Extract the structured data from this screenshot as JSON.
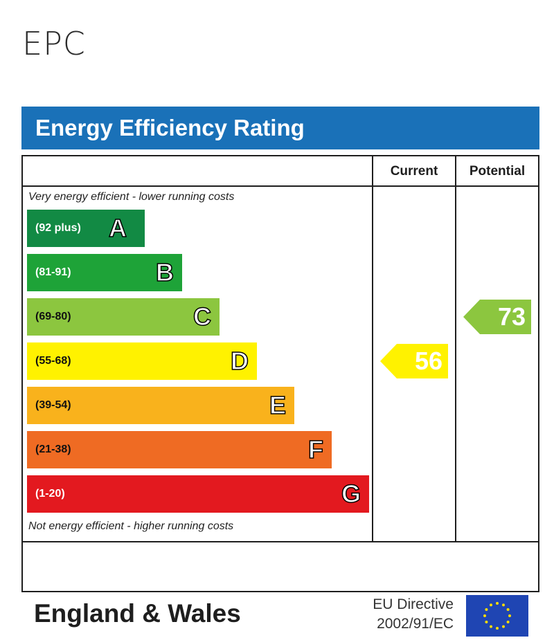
{
  "page": {
    "heading": "EPC"
  },
  "epc": {
    "title": "Energy Efficiency Rating",
    "column_headers": {
      "current": "Current",
      "potential": "Potential"
    },
    "top_caption": "Very energy efficient - lower running costs",
    "bottom_caption": "Not energy efficient - higher running costs",
    "footer": {
      "region": "England & Wales",
      "directive_line1": "EU Directive",
      "directive_line2": "2002/91/EC"
    }
  },
  "chart_data": {
    "type": "bar",
    "categories": [
      "A",
      "B",
      "C",
      "D",
      "E",
      "F",
      "G"
    ],
    "ranges": [
      "(92 plus)",
      "(81-91)",
      "(69-80)",
      "(55-68)",
      "(39-54)",
      "(21-38)",
      "(1-20)"
    ],
    "colors": [
      "#128a44",
      "#1ea338",
      "#8cc63f",
      "#fff200",
      "#f9b21c",
      "#ef6b23",
      "#e3191f"
    ],
    "current": {
      "value": 56,
      "band": "D",
      "color": "#fff200"
    },
    "potential": {
      "value": 73,
      "band": "C",
      "color": "#8cc63f"
    }
  }
}
